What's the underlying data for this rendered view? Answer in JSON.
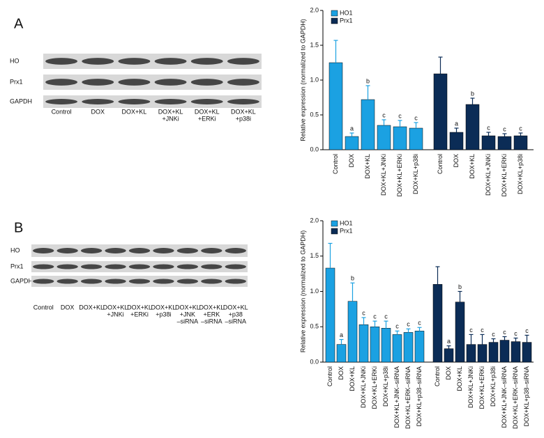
{
  "panels": [
    {
      "label": "A",
      "blot": {
        "rows": [
          "HO",
          "Prx1",
          "GAPDH"
        ],
        "lanes": [
          [
            "Control"
          ],
          [
            "DOX"
          ],
          [
            "DOX+KL"
          ],
          [
            "DOX+KL",
            "+JNKi"
          ],
          [
            "DOX+KL",
            "+ERKi"
          ],
          [
            "DOX+KL",
            "+p38i"
          ]
        ]
      }
    },
    {
      "label": "B",
      "blot": {
        "rows": [
          "HO",
          "Prx1",
          "GAPDH"
        ],
        "lanes": [
          [
            "Control"
          ],
          [
            "DOX"
          ],
          [
            "DOX+KL"
          ],
          [
            "DOX+KL",
            "+JNKi"
          ],
          [
            "DOX+KL",
            "+ERKi"
          ],
          [
            "DOX+KL",
            "+p38i"
          ],
          [
            "DOX+KL",
            "+JNK",
            "–siRNA"
          ],
          [
            "DOX+KL",
            "+ERK",
            "–siRNA"
          ],
          [
            "DOX+KL",
            "+p38",
            "–siRNA"
          ]
        ]
      }
    }
  ],
  "chart_data": [
    {
      "type": "bar",
      "ylabel": "Relative expression (normalized to GAPDH)",
      "categories": [
        "Control",
        "DOX",
        "DOX+KL",
        "DOX+KL+JNKi",
        "DOX+KL+ERKi",
        "DOX+KL+p38i"
      ],
      "ylim": [
        0,
        2
      ],
      "yticks": [
        {
          "value": 0,
          "label": "0.0"
        },
        {
          "value": 0.5,
          "label": "0.5"
        },
        {
          "value": 1,
          "label": "1.0"
        },
        {
          "value": 1.5,
          "label": "1.5"
        },
        {
          "value": 2,
          "label": "2.0"
        }
      ],
      "legend": "top-left",
      "series": [
        {
          "name": "HO1",
          "color": "#1ba1e2",
          "values": [
            1.25,
            0.19,
            0.72,
            0.35,
            0.33,
            0.31
          ],
          "errors": [
            0.32,
            0.05,
            0.2,
            0.08,
            0.09,
            0.08
          ],
          "annotations": [
            null,
            "a",
            "b",
            "c",
            "c",
            "c"
          ]
        },
        {
          "name": "Prx1",
          "color": "#0b2c56",
          "values": [
            1.09,
            0.25,
            0.65,
            0.2,
            0.19,
            0.2
          ],
          "errors": [
            0.24,
            0.06,
            0.09,
            0.05,
            0.04,
            0.04
          ],
          "annotations": [
            null,
            "a",
            "b",
            "c",
            "c",
            "c"
          ]
        }
      ]
    },
    {
      "type": "bar",
      "ylabel": "Relative expression (normalized to GAPDH)",
      "categories": [
        "Control",
        "DOX",
        "DOX+KL",
        "DOX+KL+JNKi",
        "DOX+KL+ERKi",
        "DOX+KL+p38i",
        "DOX+KL+JNK–siRNA",
        "DOX+KL+ERK–siRNA",
        "DOX+KL+p38–siRNA"
      ],
      "ylim": [
        0,
        2
      ],
      "yticks": [
        {
          "value": 0,
          "label": "0.0"
        },
        {
          "value": 0.5,
          "label": "0.5"
        },
        {
          "value": 1,
          "label": "1.0"
        },
        {
          "value": 1.5,
          "label": "1.5"
        },
        {
          "value": 2,
          "label": "2.0"
        }
      ],
      "legend": "top-left",
      "series": [
        {
          "name": "HO1",
          "color": "#1ba1e2",
          "values": [
            1.33,
            0.25,
            0.86,
            0.53,
            0.5,
            0.48,
            0.39,
            0.42,
            0.44
          ],
          "errors": [
            0.35,
            0.07,
            0.26,
            0.1,
            0.08,
            0.1,
            0.05,
            0.05,
            0.05
          ],
          "annotations": [
            null,
            "a",
            "b",
            "c",
            "c",
            "c",
            "c",
            "c",
            "c"
          ]
        },
        {
          "name": "Prx1",
          "color": "#0b2c56",
          "values": [
            1.1,
            0.19,
            0.85,
            0.25,
            0.25,
            0.28,
            0.31,
            0.29,
            0.28
          ],
          "errors": [
            0.25,
            0.04,
            0.15,
            0.14,
            0.14,
            0.05,
            0.05,
            0.05,
            0.1
          ],
          "annotations": [
            null,
            "a",
            "b",
            "c",
            "c",
            "c",
            "c",
            "c",
            "c"
          ]
        }
      ]
    }
  ]
}
